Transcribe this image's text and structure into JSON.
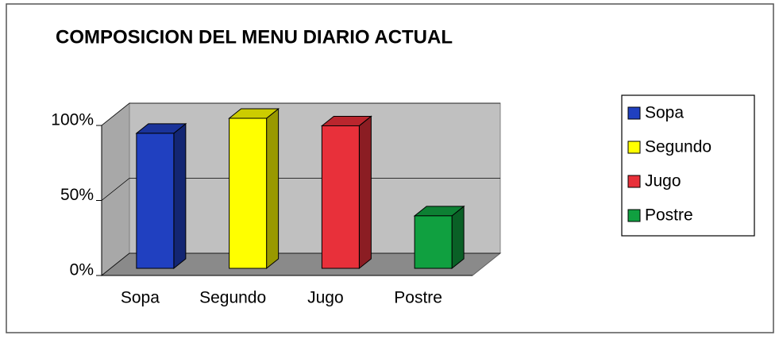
{
  "chart_data": {
    "type": "bar3d",
    "title": "COMPOSICION DEL MENU DIARIO ACTUAL",
    "categories": [
      "Sopa",
      "Segundo",
      "Jugo",
      "Postre"
    ],
    "values": [
      90,
      100,
      95,
      35
    ],
    "colors": [
      "#2040c0",
      "#ffff00",
      "#e8303a",
      "#10a040"
    ],
    "ylim": [
      0,
      100
    ],
    "yticks": [
      {
        "value": 0,
        "label": "0%"
      },
      {
        "value": 50,
        "label": "50%"
      },
      {
        "value": 100,
        "label": "100%"
      }
    ],
    "grid": true,
    "legend": "right"
  }
}
